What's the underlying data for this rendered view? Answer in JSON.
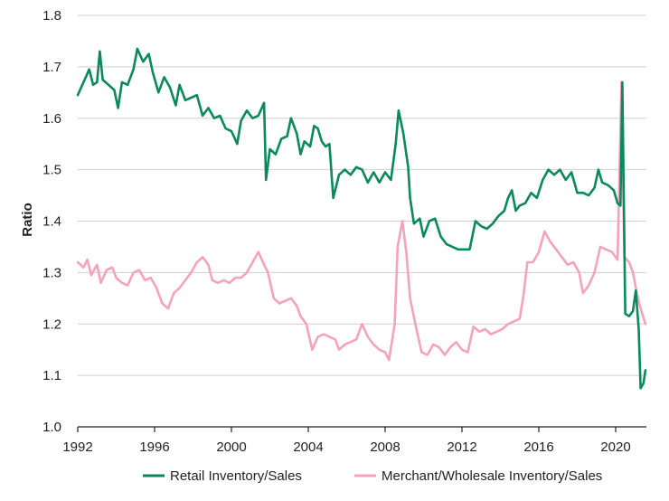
{
  "chart_data": {
    "type": "line",
    "title": "",
    "xlabel": "",
    "ylabel": "Ratio",
    "xlim": [
      1992,
      2021.6
    ],
    "ylim": [
      1.0,
      1.8
    ],
    "x_ticks": [
      1992,
      1996,
      2000,
      2004,
      2008,
      2012,
      2016,
      2020
    ],
    "y_ticks": [
      1.0,
      1.1,
      1.2,
      1.3,
      1.4,
      1.5,
      1.6,
      1.7,
      1.8
    ],
    "y_tick_labels": [
      "1.0",
      "1.1",
      "1.2",
      "1.3",
      "1.4",
      "1.5",
      "1.6",
      "1.7",
      "1.8"
    ],
    "grid": "horizontal",
    "legend_position": "bottom",
    "series": [
      {
        "name": "Retail Inventory/Sales",
        "color": "#0a8a5a",
        "points": [
          [
            1992.0,
            1.645
          ],
          [
            1992.3,
            1.67
          ],
          [
            1992.6,
            1.695
          ],
          [
            1992.8,
            1.665
          ],
          [
            1993.0,
            1.67
          ],
          [
            1993.15,
            1.73
          ],
          [
            1993.3,
            1.675
          ],
          [
            1993.6,
            1.665
          ],
          [
            1993.9,
            1.655
          ],
          [
            1994.1,
            1.62
          ],
          [
            1994.3,
            1.67
          ],
          [
            1994.6,
            1.665
          ],
          [
            1994.9,
            1.695
          ],
          [
            1995.1,
            1.735
          ],
          [
            1995.4,
            1.71
          ],
          [
            1995.7,
            1.725
          ],
          [
            1995.9,
            1.69
          ],
          [
            1996.2,
            1.65
          ],
          [
            1996.5,
            1.68
          ],
          [
            1996.8,
            1.66
          ],
          [
            1997.1,
            1.625
          ],
          [
            1997.3,
            1.665
          ],
          [
            1997.6,
            1.635
          ],
          [
            1997.9,
            1.64
          ],
          [
            1998.2,
            1.645
          ],
          [
            1998.5,
            1.605
          ],
          [
            1998.8,
            1.62
          ],
          [
            1999.1,
            1.6
          ],
          [
            1999.4,
            1.605
          ],
          [
            1999.7,
            1.58
          ],
          [
            2000.0,
            1.575
          ],
          [
            2000.3,
            1.55
          ],
          [
            2000.5,
            1.595
          ],
          [
            2000.8,
            1.615
          ],
          [
            2001.1,
            1.6
          ],
          [
            2001.4,
            1.605
          ],
          [
            2001.7,
            1.63
          ],
          [
            2001.8,
            1.48
          ],
          [
            2002.0,
            1.54
          ],
          [
            2002.3,
            1.53
          ],
          [
            2002.6,
            1.56
          ],
          [
            2002.9,
            1.565
          ],
          [
            2003.1,
            1.6
          ],
          [
            2003.4,
            1.57
          ],
          [
            2003.6,
            1.53
          ],
          [
            2003.8,
            1.555
          ],
          [
            2004.1,
            1.545
          ],
          [
            2004.3,
            1.585
          ],
          [
            2004.5,
            1.58
          ],
          [
            2004.7,
            1.555
          ],
          [
            2004.9,
            1.545
          ],
          [
            2005.1,
            1.55
          ],
          [
            2005.3,
            1.445
          ],
          [
            2005.6,
            1.49
          ],
          [
            2005.9,
            1.5
          ],
          [
            2006.2,
            1.49
          ],
          [
            2006.5,
            1.505
          ],
          [
            2006.8,
            1.5
          ],
          [
            2007.1,
            1.475
          ],
          [
            2007.4,
            1.495
          ],
          [
            2007.7,
            1.475
          ],
          [
            2008.0,
            1.495
          ],
          [
            2008.3,
            1.48
          ],
          [
            2008.55,
            1.55
          ],
          [
            2008.7,
            1.615
          ],
          [
            2008.95,
            1.57
          ],
          [
            2009.2,
            1.505
          ],
          [
            2009.3,
            1.445
          ],
          [
            2009.5,
            1.395
          ],
          [
            2009.8,
            1.405
          ],
          [
            2010.0,
            1.37
          ],
          [
            2010.3,
            1.4
          ],
          [
            2010.6,
            1.405
          ],
          [
            2010.9,
            1.37
          ],
          [
            2011.2,
            1.355
          ],
          [
            2011.5,
            1.35
          ],
          [
            2011.8,
            1.345
          ],
          [
            2012.1,
            1.345
          ],
          [
            2012.4,
            1.345
          ],
          [
            2012.7,
            1.4
          ],
          [
            2013.0,
            1.39
          ],
          [
            2013.3,
            1.385
          ],
          [
            2013.6,
            1.395
          ],
          [
            2013.9,
            1.41
          ],
          [
            2014.2,
            1.42
          ],
          [
            2014.4,
            1.445
          ],
          [
            2014.6,
            1.46
          ],
          [
            2014.8,
            1.42
          ],
          [
            2015.0,
            1.43
          ],
          [
            2015.3,
            1.435
          ],
          [
            2015.6,
            1.455
          ],
          [
            2015.9,
            1.445
          ],
          [
            2016.2,
            1.48
          ],
          [
            2016.5,
            1.5
          ],
          [
            2016.8,
            1.49
          ],
          [
            2017.1,
            1.5
          ],
          [
            2017.4,
            1.48
          ],
          [
            2017.7,
            1.495
          ],
          [
            2018.0,
            1.455
          ],
          [
            2018.3,
            1.455
          ],
          [
            2018.6,
            1.45
          ],
          [
            2018.9,
            1.465
          ],
          [
            2019.1,
            1.5
          ],
          [
            2019.3,
            1.475
          ],
          [
            2019.6,
            1.47
          ],
          [
            2019.9,
            1.46
          ],
          [
            2020.1,
            1.435
          ],
          [
            2020.25,
            1.43
          ],
          [
            2020.35,
            1.67
          ],
          [
            2020.5,
            1.22
          ],
          [
            2020.7,
            1.215
          ],
          [
            2020.9,
            1.225
          ],
          [
            2021.05,
            1.265
          ],
          [
            2021.2,
            1.19
          ],
          [
            2021.3,
            1.075
          ],
          [
            2021.45,
            1.085
          ],
          [
            2021.55,
            1.11
          ]
        ]
      },
      {
        "name": "Merchant/Wholesale Inventory/Sales",
        "color": "#f5a3b8",
        "points": [
          [
            1992.0,
            1.32
          ],
          [
            1992.3,
            1.31
          ],
          [
            1992.5,
            1.325
          ],
          [
            1992.7,
            1.295
          ],
          [
            1993.0,
            1.315
          ],
          [
            1993.2,
            1.28
          ],
          [
            1993.5,
            1.305
          ],
          [
            1993.8,
            1.31
          ],
          [
            1994.0,
            1.29
          ],
          [
            1994.3,
            1.28
          ],
          [
            1994.6,
            1.275
          ],
          [
            1994.9,
            1.3
          ],
          [
            1995.2,
            1.305
          ],
          [
            1995.5,
            1.285
          ],
          [
            1995.8,
            1.29
          ],
          [
            1996.1,
            1.27
          ],
          [
            1996.4,
            1.24
          ],
          [
            1996.7,
            1.23
          ],
          [
            1997.0,
            1.26
          ],
          [
            1997.3,
            1.27
          ],
          [
            1997.6,
            1.285
          ],
          [
            1997.9,
            1.3
          ],
          [
            1998.2,
            1.32
          ],
          [
            1998.5,
            1.33
          ],
          [
            1998.8,
            1.315
          ],
          [
            1999.0,
            1.285
          ],
          [
            1999.3,
            1.28
          ],
          [
            1999.6,
            1.285
          ],
          [
            1999.9,
            1.28
          ],
          [
            2000.2,
            1.29
          ],
          [
            2000.5,
            1.29
          ],
          [
            2000.8,
            1.3
          ],
          [
            2001.1,
            1.32
          ],
          [
            2001.4,
            1.34
          ],
          [
            2001.7,
            1.315
          ],
          [
            2001.9,
            1.3
          ],
          [
            2002.2,
            1.25
          ],
          [
            2002.5,
            1.24
          ],
          [
            2002.8,
            1.245
          ],
          [
            2003.1,
            1.25
          ],
          [
            2003.4,
            1.235
          ],
          [
            2003.6,
            1.215
          ],
          [
            2003.9,
            1.2
          ],
          [
            2004.2,
            1.15
          ],
          [
            2004.5,
            1.175
          ],
          [
            2004.8,
            1.18
          ],
          [
            2005.1,
            1.175
          ],
          [
            2005.4,
            1.17
          ],
          [
            2005.6,
            1.15
          ],
          [
            2005.9,
            1.16
          ],
          [
            2006.2,
            1.165
          ],
          [
            2006.5,
            1.17
          ],
          [
            2006.8,
            1.2
          ],
          [
            2007.1,
            1.175
          ],
          [
            2007.4,
            1.16
          ],
          [
            2007.7,
            1.15
          ],
          [
            2008.0,
            1.145
          ],
          [
            2008.2,
            1.13
          ],
          [
            2008.5,
            1.2
          ],
          [
            2008.65,
            1.35
          ],
          [
            2008.9,
            1.4
          ],
          [
            2009.1,
            1.34
          ],
          [
            2009.3,
            1.25
          ],
          [
            2009.6,
            1.195
          ],
          [
            2009.9,
            1.145
          ],
          [
            2010.2,
            1.14
          ],
          [
            2010.5,
            1.16
          ],
          [
            2010.8,
            1.155
          ],
          [
            2011.1,
            1.14
          ],
          [
            2011.4,
            1.155
          ],
          [
            2011.7,
            1.165
          ],
          [
            2012.0,
            1.15
          ],
          [
            2012.3,
            1.145
          ],
          [
            2012.6,
            1.195
          ],
          [
            2012.9,
            1.185
          ],
          [
            2013.2,
            1.19
          ],
          [
            2013.5,
            1.18
          ],
          [
            2013.8,
            1.185
          ],
          [
            2014.1,
            1.19
          ],
          [
            2014.4,
            1.2
          ],
          [
            2014.7,
            1.205
          ],
          [
            2015.0,
            1.21
          ],
          [
            2015.2,
            1.255
          ],
          [
            2015.4,
            1.32
          ],
          [
            2015.7,
            1.32
          ],
          [
            2016.0,
            1.34
          ],
          [
            2016.3,
            1.38
          ],
          [
            2016.6,
            1.36
          ],
          [
            2016.9,
            1.345
          ],
          [
            2017.2,
            1.33
          ],
          [
            2017.5,
            1.315
          ],
          [
            2017.8,
            1.32
          ],
          [
            2018.1,
            1.3
          ],
          [
            2018.3,
            1.26
          ],
          [
            2018.6,
            1.275
          ],
          [
            2018.9,
            1.3
          ],
          [
            2019.2,
            1.35
          ],
          [
            2019.5,
            1.345
          ],
          [
            2019.8,
            1.34
          ],
          [
            2020.1,
            1.325
          ],
          [
            2020.3,
            1.67
          ],
          [
            2020.45,
            1.33
          ],
          [
            2020.7,
            1.32
          ],
          [
            2020.9,
            1.3
          ],
          [
            2021.1,
            1.26
          ],
          [
            2021.3,
            1.23
          ],
          [
            2021.55,
            1.2
          ]
        ]
      }
    ]
  }
}
